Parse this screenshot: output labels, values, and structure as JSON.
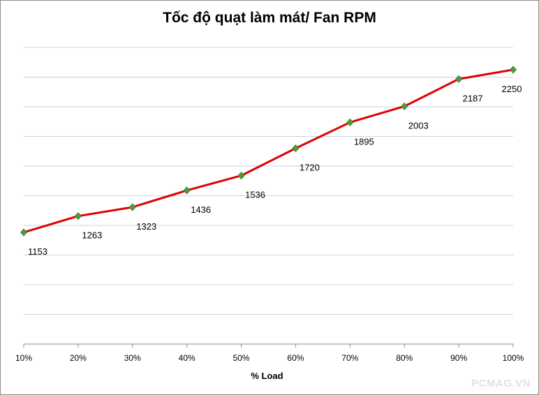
{
  "chart_data": {
    "type": "line",
    "title": "Tốc độ quạt làm mát/ Fan RPM",
    "xlabel": "% Load",
    "ylabel": "",
    "categories": [
      "10%",
      "20%",
      "30%",
      "40%",
      "50%",
      "60%",
      "70%",
      "80%",
      "90%",
      "100%"
    ],
    "series": [
      {
        "name": "Fan RPM",
        "values": [
          1153,
          1263,
          1323,
          1436,
          1536,
          1720,
          1895,
          2003,
          2187,
          2250
        ],
        "labels": [
          "1153",
          "1263",
          "1323",
          "1436",
          "1536",
          "1720",
          "1895",
          "2003",
          "2187",
          "2250"
        ]
      }
    ],
    "ylim": [
      400,
      2400
    ],
    "gridlines": "horizontal",
    "legend": "none",
    "line_color": "#e00000",
    "marker_color": "#4f9a3a",
    "gridline_color": "#c5d5ea"
  },
  "watermark": "PCMAG.VN"
}
